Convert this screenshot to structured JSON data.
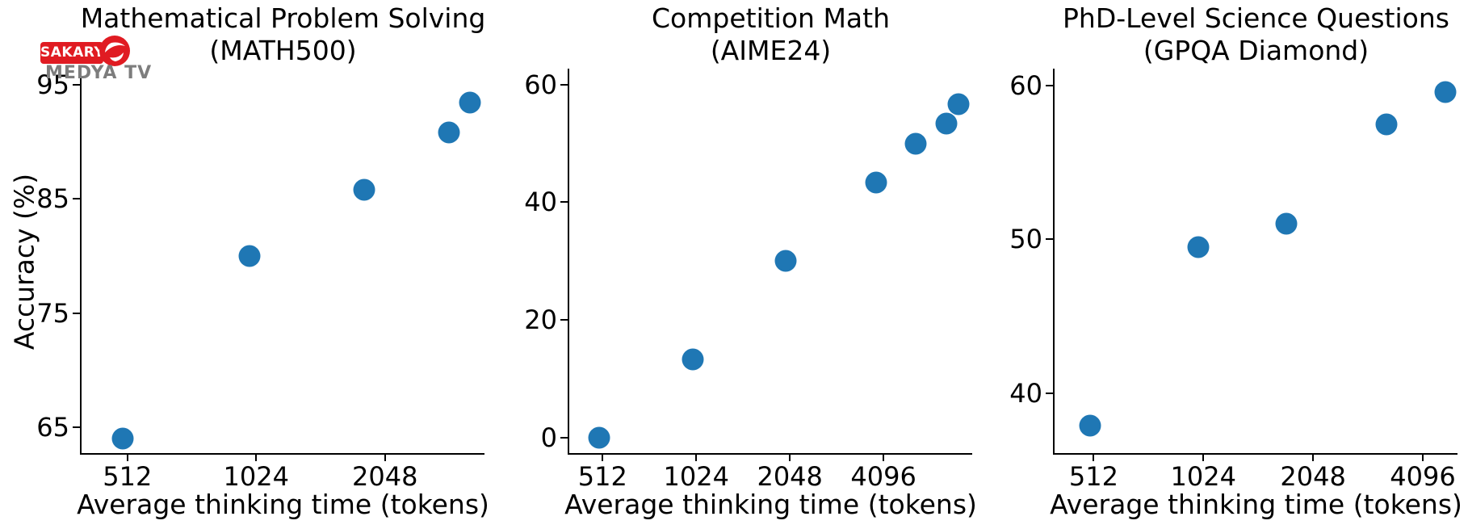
{
  "watermark": {
    "line1": "SAKARYA",
    "line2": "MEDYA TV",
    "box_color": "#e01b22",
    "text_gray": "#7d7d7d"
  },
  "figure": {
    "background": "#ffffff",
    "ylabel": "Accuracy (%)",
    "dot_color": "#1f77b4",
    "axis_color": "#000000"
  },
  "chart_data": [
    {
      "type": "scatter",
      "title_line1": "Mathematical Problem Solving",
      "title_line2": "(MATH500)",
      "xlabel": "Average thinking time (tokens)",
      "ylabel": "Accuracy (%)",
      "x_scale": "log2",
      "grid": false,
      "legend": null,
      "xlim": [
        400,
        3500
      ],
      "ylim": [
        62.6,
        96.4
      ],
      "xticks": [
        512,
        1024,
        2048
      ],
      "yticks": [
        65,
        75,
        85,
        95
      ],
      "x": [
        500,
        990,
        1830,
        2890,
        3230
      ],
      "y": [
        64.0,
        80.0,
        85.8,
        90.8,
        93.4
      ]
    },
    {
      "type": "scatter",
      "title_line1": "Competition Math",
      "title_line2": "(AIME24)",
      "xlabel": "Average thinking time (tokens)",
      "x_scale": "log2",
      "grid": false,
      "legend": null,
      "xlim": [
        400,
        7900
      ],
      "ylim": [
        -2.9,
        62.7
      ],
      "xticks": [
        512,
        1024,
        2048,
        4096
      ],
      "yticks": [
        0,
        20,
        40,
        60
      ],
      "x": [
        500,
        1000,
        1990,
        3880,
        5190,
        6540,
        7150
      ],
      "y": [
        0.0,
        13.3,
        30.0,
        43.3,
        50.0,
        53.3,
        56.7
      ]
    },
    {
      "type": "scatter",
      "title_line1": "PhD-Level Science Questions",
      "title_line2": "(GPQA Diamond)",
      "xlabel": "Average thinking time (tokens)",
      "x_scale": "log2",
      "grid": false,
      "legend": null,
      "xlim": [
        400,
        5100
      ],
      "ylim": [
        36.0,
        61.1
      ],
      "xticks": [
        512,
        1024,
        2048,
        4096
      ],
      "yticks": [
        40,
        50,
        60
      ],
      "x": [
        500,
        990,
        1730,
        3260,
        4720
      ],
      "y": [
        37.9,
        49.5,
        51.0,
        57.5,
        59.6
      ]
    }
  ]
}
